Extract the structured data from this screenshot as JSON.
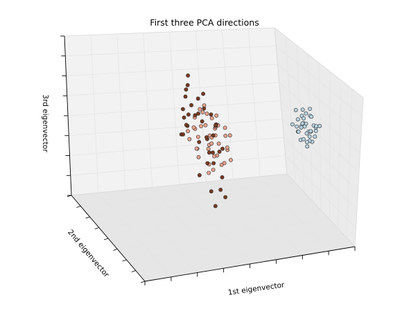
{
  "chart_data": {
    "type": "scatter",
    "title": "First three PCA directions",
    "xlabel": "1st eigenvector",
    "ylabel": "2nd eigenvector",
    "zlabel": "3rd eigenvector",
    "tick_labels_shown": false,
    "grid": true,
    "colormap": "sequential-blue-to-red",
    "cluster_colors": [
      "#b8d4e4",
      "#f0a58f",
      "#7a3a20"
    ],
    "point_xyz_range": [
      -1,
      1
    ],
    "series": [
      {
        "cluster": 0,
        "points": [
          [
            0.85,
            -0.05,
            0.2
          ],
          [
            0.9,
            0.05,
            0.15
          ],
          [
            0.88,
            -0.1,
            0.05
          ],
          [
            0.92,
            0.0,
            0.28
          ],
          [
            0.8,
            0.1,
            0.12
          ],
          [
            0.95,
            -0.05,
            0.1
          ],
          [
            0.86,
            0.15,
            0.0
          ],
          [
            0.9,
            -0.15,
            0.22
          ],
          [
            0.84,
            0.02,
            -0.05
          ],
          [
            0.93,
            0.08,
            0.03
          ],
          [
            0.88,
            -0.02,
            0.32
          ],
          [
            0.82,
            -0.08,
            0.18
          ],
          [
            0.97,
            0.04,
            -0.02
          ],
          [
            0.91,
            0.12,
            0.08
          ],
          [
            0.87,
            0.06,
            0.25
          ],
          [
            0.85,
            -0.12,
            0.1
          ],
          [
            0.94,
            -0.08,
            0.16
          ],
          [
            0.89,
            0.1,
            -0.08
          ],
          [
            0.83,
            0.04,
            0.05
          ],
          [
            0.92,
            -0.04,
            -0.05
          ],
          [
            0.86,
            0.0,
            0.36
          ],
          [
            0.9,
            0.18,
            0.04
          ],
          [
            0.96,
            -0.12,
            0.2
          ],
          [
            0.81,
            -0.02,
            0.24
          ],
          [
            0.88,
            0.08,
            0.14
          ],
          [
            0.93,
            0.02,
            0.06
          ],
          [
            0.87,
            -0.06,
            -0.1
          ],
          [
            0.91,
            0.14,
            0.18
          ],
          [
            0.84,
            0.12,
            0.3
          ],
          [
            0.89,
            -0.1,
            0.12
          ],
          [
            0.95,
            0.06,
            0.24
          ],
          [
            0.86,
            -0.16,
            0.02
          ],
          [
            0.92,
            0.1,
            -0.12
          ],
          [
            0.83,
            0.08,
            0.1
          ],
          [
            0.9,
            -0.06,
            0.4
          ],
          [
            0.97,
            0.0,
            0.14
          ]
        ]
      },
      {
        "cluster": 1,
        "points": [
          [
            -0.05,
            0.05,
            0.1
          ],
          [
            0.02,
            -0.05,
            -0.1
          ],
          [
            0.08,
            0.1,
            0.0
          ],
          [
            -0.02,
            0.15,
            0.2
          ],
          [
            0.05,
            -0.1,
            0.05
          ],
          [
            0.1,
            0.0,
            -0.2
          ],
          [
            0.0,
            0.2,
            -0.05
          ],
          [
            -0.08,
            -0.05,
            0.15
          ],
          [
            0.12,
            0.05,
            0.1
          ],
          [
            0.04,
            -0.15,
            -0.15
          ],
          [
            0.15,
            0.1,
            -0.1
          ],
          [
            -0.04,
            0.1,
            -0.25
          ],
          [
            0.06,
            0.18,
            0.25
          ],
          [
            0.02,
            0.0,
            -0.3
          ],
          [
            0.18,
            -0.05,
            0.05
          ],
          [
            -0.1,
            0.12,
            0.05
          ],
          [
            0.09,
            -0.12,
            0.18
          ],
          [
            0.14,
            0.15,
            -0.02
          ],
          [
            0.0,
            -0.2,
            0.0
          ],
          [
            0.07,
            0.08,
            -0.4
          ],
          [
            0.2,
            0.02,
            0.12
          ],
          [
            -0.06,
            0.02,
            -0.12
          ],
          [
            0.11,
            -0.08,
            -0.28
          ],
          [
            0.03,
            0.14,
            0.3
          ],
          [
            0.16,
            -0.15,
            -0.08
          ],
          [
            -0.02,
            -0.12,
            -0.35
          ],
          [
            0.08,
            0.22,
            0.08
          ],
          [
            0.13,
            -0.02,
            0.28
          ],
          [
            0.22,
            0.1,
            -0.15
          ],
          [
            0.05,
            0.04,
            0.38
          ],
          [
            -0.12,
            0.0,
            0.0
          ],
          [
            0.1,
            -0.18,
            0.22
          ],
          [
            0.17,
            0.06,
            -0.32
          ],
          [
            0.01,
            0.08,
            0.12
          ],
          [
            0.19,
            -0.1,
            -0.22
          ],
          [
            0.06,
            -0.02,
            -0.05
          ],
          [
            0.24,
            0.04,
            0.02
          ],
          [
            -0.03,
            0.18,
            -0.18
          ],
          [
            0.12,
            0.12,
            0.2
          ],
          [
            0.04,
            -0.08,
            0.32
          ]
        ]
      },
      {
        "cluster": 2,
        "points": [
          [
            -0.1,
            -0.2,
            0.45
          ],
          [
            -0.05,
            -0.3,
            0.3
          ],
          [
            0.0,
            -0.25,
            0.6
          ],
          [
            -0.15,
            -0.15,
            0.2
          ],
          [
            -0.08,
            -0.35,
            0.4
          ],
          [
            0.05,
            -0.2,
            0.35
          ],
          [
            -0.12,
            -0.4,
            0.1
          ],
          [
            -0.02,
            -0.1,
            0.5
          ],
          [
            -0.18,
            -0.28,
            0.25
          ],
          [
            0.02,
            -0.32,
            0.15
          ],
          [
            -0.06,
            -0.45,
            0.0
          ],
          [
            -0.14,
            -0.22,
            0.55
          ],
          [
            0.04,
            -0.38,
            0.28
          ],
          [
            -0.1,
            -0.5,
            -0.1
          ],
          [
            -0.2,
            -0.35,
            0.35
          ],
          [
            0.0,
            -0.15,
            0.05
          ],
          [
            -0.04,
            -0.42,
            0.48
          ],
          [
            -0.16,
            -0.12,
            0.38
          ],
          [
            0.06,
            -0.28,
            -0.05
          ],
          [
            -0.08,
            -0.55,
            0.2
          ],
          [
            -0.12,
            -0.3,
            0.7
          ],
          [
            0.03,
            -0.46,
            0.32
          ],
          [
            -0.22,
            -0.2,
            0.12
          ],
          [
            -0.02,
            -0.36,
            -0.15
          ],
          [
            -0.18,
            -0.48,
            0.42
          ],
          [
            0.08,
            -0.18,
            0.22
          ],
          [
            -0.06,
            -0.6,
            0.05
          ],
          [
            -0.1,
            -0.26,
            0.8
          ],
          [
            0.0,
            -0.52,
            -0.25
          ],
          [
            -0.24,
            -0.4,
            0.18
          ],
          [
            -0.14,
            -0.65,
            -0.35
          ],
          [
            -0.04,
            -0.7,
            -0.4
          ],
          [
            -0.2,
            -0.58,
            -0.2
          ],
          [
            -0.08,
            -0.75,
            -0.3
          ],
          [
            0.02,
            -0.62,
            0.1
          ],
          [
            -0.16,
            -0.8,
            -0.45
          ],
          [
            -0.12,
            -0.18,
            0.62
          ],
          [
            -0.06,
            -0.08,
            0.3
          ]
        ]
      }
    ]
  }
}
